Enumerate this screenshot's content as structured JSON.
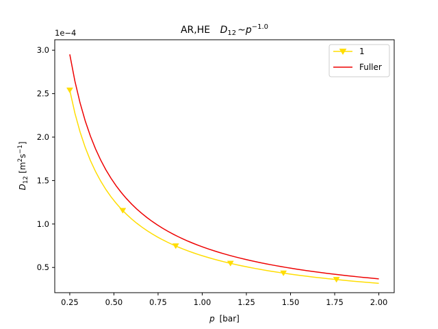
{
  "chart_data": {
    "type": "line",
    "title_prefix": "AR,HE",
    "title_math_symbol": "D",
    "title_math_subscript": "12",
    "title_math_relation": "~",
    "title_math_base": "p",
    "title_math_exponent": "−1.0",
    "xlabel_symbol": "p",
    "xlabel_unit": "[bar]",
    "ylabel_symbol": "D",
    "ylabel_subscript": "12",
    "ylabel_unit_open": "[m",
    "ylabel_unit_exp1": "2",
    "ylabel_unit_mid": "s",
    "ylabel_unit_exp2": "−1",
    "ylabel_unit_close": "]",
    "y_offset_text": "1e−4",
    "xlim": [
      0.165,
      2.087
    ],
    "ylim": [
      0.21,
      3.12
    ],
    "x_ticks": [
      0.25,
      0.5,
      0.75,
      1.0,
      1.25,
      1.5,
      1.75,
      2.0
    ],
    "x_tick_labels": [
      "0.25",
      "0.50",
      "0.75",
      "1.00",
      "1.25",
      "1.50",
      "1.75",
      "2.00"
    ],
    "y_ticks": [
      0.5,
      1.0,
      1.5,
      2.0,
      2.5,
      3.0
    ],
    "y_tick_labels": [
      "0.5",
      "1.0",
      "1.5",
      "2.0",
      "2.5",
      "3.0"
    ],
    "y_multiplier": "1e-4",
    "legend_position": "top-right",
    "grid": false,
    "series": [
      {
        "name": "1",
        "color": "#ffdd00",
        "marker": "triangle-down",
        "relation": "0.635 / p",
        "x_range": [
          0.25,
          2.0
        ],
        "marker_points": [
          {
            "x": 0.25,
            "y": 2.54
          },
          {
            "x": 0.55,
            "y": 1.155
          },
          {
            "x": 0.85,
            "y": 0.747
          },
          {
            "x": 1.16,
            "y": 0.547
          },
          {
            "x": 1.46,
            "y": 0.435
          },
          {
            "x": 1.76,
            "y": 0.361
          }
        ]
      },
      {
        "name": "Fuller",
        "color": "#ee0000",
        "marker": "none",
        "relation": "0.738 / p",
        "x_range": [
          0.25,
          2.0
        ]
      }
    ]
  }
}
